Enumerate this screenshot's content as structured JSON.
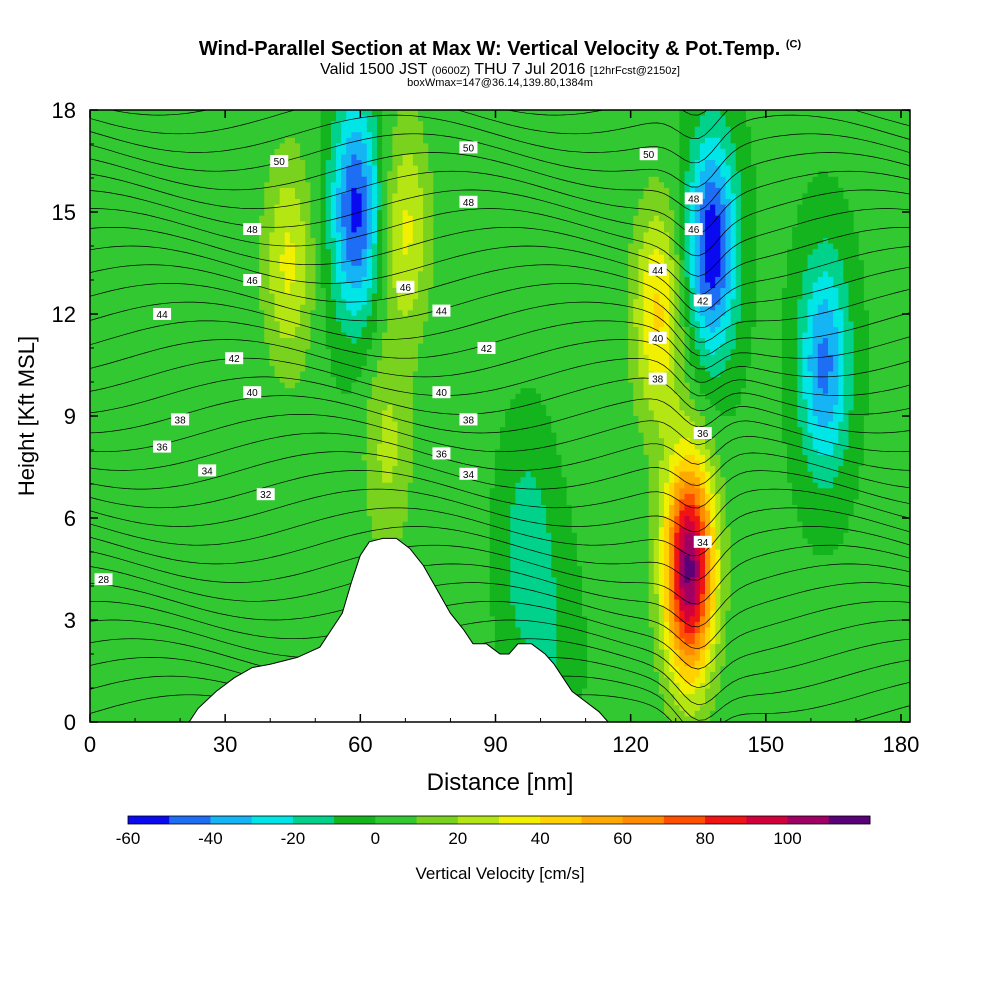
{
  "header": {
    "title": "Wind-Parallel Section at Max W: Vertical Velocity & Pot.Temp.",
    "copyright": "(C)",
    "subtitle_main": "Valid 1500 JST",
    "subtitle_utc": "(0600Z)",
    "subtitle_date": "THU 7 Jul 2016",
    "subtitle_fcst": "[12hrFcst@2150z]",
    "subtitle2": "boxWmax=147@36.14,139.80,1384m"
  },
  "chart_data": {
    "type": "heatmap",
    "xlabel": "Distance [nm]",
    "ylabel": "Height [Kft MSL]",
    "xlim": [
      0,
      182
    ],
    "ylim": [
      0,
      18
    ],
    "x_ticks": [
      "0",
      "30",
      "60",
      "90",
      "120",
      "150",
      "180"
    ],
    "y_ticks": [
      "0",
      "3",
      "6",
      "9",
      "12",
      "15",
      "18"
    ],
    "colorbar": {
      "label": "Vertical Velocity [cm/s]",
      "levels": [
        -60,
        -50,
        -40,
        -30,
        -20,
        -10,
        0,
        10,
        20,
        30,
        40,
        50,
        60,
        70,
        80,
        90,
        100,
        110
      ],
      "tick_labels": [
        "-60",
        "-40",
        "-20",
        "0",
        "20",
        "40",
        "60",
        "80",
        "100"
      ],
      "colors": [
        "#0a0af0",
        "#1e6ef5",
        "#14b4f5",
        "#00e6e6",
        "#00d28c",
        "#14b41e",
        "#32c832",
        "#78d21e",
        "#b4e614",
        "#f0f000",
        "#ffd200",
        "#ffaa00",
        "#ff8c00",
        "#ff5000",
        "#f01414",
        "#d2003c",
        "#a00064",
        "#5a0078"
      ]
    },
    "vertical_velocity_features": [
      {
        "x": 44,
        "y": 13.5,
        "value": 30
      },
      {
        "x": 59,
        "y": 15.0,
        "value": -55
      },
      {
        "x": 70,
        "y": 14.5,
        "value": 30
      },
      {
        "x": 66,
        "y": 8.0,
        "value": 20
      },
      {
        "x": 97,
        "y": 5.0,
        "value": -20
      },
      {
        "x": 103,
        "y": 2.0,
        "value": -10
      },
      {
        "x": 126,
        "y": 12.0,
        "value": 40
      },
      {
        "x": 133,
        "y": 4.5,
        "value": 110
      },
      {
        "x": 138,
        "y": 14.0,
        "value": -60
      },
      {
        "x": 163,
        "y": 10.5,
        "value": -45
      }
    ],
    "terrain": [
      [
        0,
        0
      ],
      [
        22,
        0
      ],
      [
        24,
        0.4
      ],
      [
        28,
        0.9
      ],
      [
        32,
        1.3
      ],
      [
        36,
        1.6
      ],
      [
        40,
        1.7
      ],
      [
        46,
        1.9
      ],
      [
        51,
        2.2
      ],
      [
        53,
        2.6
      ],
      [
        56,
        3.2
      ],
      [
        58,
        4.1
      ],
      [
        60,
        4.9
      ],
      [
        62,
        5.3
      ],
      [
        65,
        5.4
      ],
      [
        68,
        5.4
      ],
      [
        71,
        5.1
      ],
      [
        74,
        4.6
      ],
      [
        77,
        3.9
      ],
      [
        80,
        3.2
      ],
      [
        83,
        2.7
      ],
      [
        85,
        2.3
      ],
      [
        88,
        2.3
      ],
      [
        91,
        2.0
      ],
      [
        93,
        2.0
      ],
      [
        95,
        2.3
      ],
      [
        98,
        2.3
      ],
      [
        101,
        2.0
      ],
      [
        103,
        1.7
      ],
      [
        105,
        1.3
      ],
      [
        107,
        0.9
      ],
      [
        110,
        0.6
      ],
      [
        113,
        0.3
      ],
      [
        115,
        0
      ],
      [
        182,
        0
      ]
    ],
    "contour_labels": [
      {
        "text": "50",
        "x": 42,
        "y": 16.5
      },
      {
        "text": "48",
        "x": 36,
        "y": 14.5
      },
      {
        "text": "46",
        "x": 36,
        "y": 13.0
      },
      {
        "text": "44",
        "x": 16,
        "y": 12.0
      },
      {
        "text": "42",
        "x": 32,
        "y": 10.7
      },
      {
        "text": "40",
        "x": 36,
        "y": 9.7
      },
      {
        "text": "38",
        "x": 20,
        "y": 8.9
      },
      {
        "text": "36",
        "x": 16,
        "y": 8.1
      },
      {
        "text": "34",
        "x": 26,
        "y": 7.4
      },
      {
        "text": "32",
        "x": 39,
        "y": 6.7
      },
      {
        "text": "28",
        "x": 3,
        "y": 4.2
      },
      {
        "text": "50",
        "x": 84,
        "y": 16.9
      },
      {
        "text": "48",
        "x": 84,
        "y": 15.3
      },
      {
        "text": "46",
        "x": 70,
        "y": 12.8
      },
      {
        "text": "44",
        "x": 78,
        "y": 12.1
      },
      {
        "text": "42",
        "x": 88,
        "y": 11.0
      },
      {
        "text": "40",
        "x": 78,
        "y": 9.7
      },
      {
        "text": "38",
        "x": 84,
        "y": 8.9
      },
      {
        "text": "36",
        "x": 78,
        "y": 7.9
      },
      {
        "text": "34",
        "x": 84,
        "y": 7.3
      },
      {
        "text": "50",
        "x": 124,
        "y": 16.7
      },
      {
        "text": "48",
        "x": 134,
        "y": 15.4
      },
      {
        "text": "46",
        "x": 134,
        "y": 14.5
      },
      {
        "text": "44",
        "x": 126,
        "y": 13.3
      },
      {
        "text": "42",
        "x": 136,
        "y": 12.4
      },
      {
        "text": "40",
        "x": 126,
        "y": 11.3
      },
      {
        "text": "38",
        "x": 126,
        "y": 10.1
      },
      {
        "text": "36",
        "x": 136,
        "y": 8.5
      },
      {
        "text": "34",
        "x": 136,
        "y": 5.3
      }
    ]
  }
}
